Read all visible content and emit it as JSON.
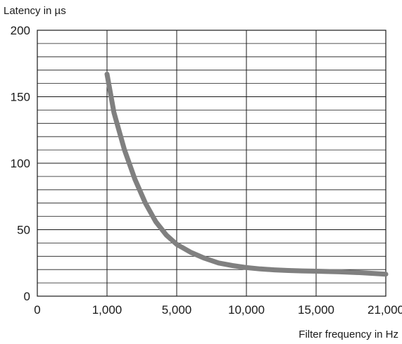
{
  "chart_data": {
    "type": "line",
    "ylabel": "Latency in µs",
    "xlabel": "Filter frequency in Hz",
    "x_categories": [
      "0",
      "1,000",
      "5,000",
      "10,000",
      "15,000",
      "21,000"
    ],
    "y_ticks": [
      0,
      50,
      100,
      150,
      200
    ],
    "ylim": [
      0,
      200
    ],
    "grid": true,
    "series": [
      {
        "color": "#808080",
        "points": [
          {
            "x": 1000,
            "y": 167
          },
          {
            "x": 1400,
            "y": 138
          },
          {
            "x": 2000,
            "y": 110
          },
          {
            "x": 2600,
            "y": 88
          },
          {
            "x": 3200,
            "y": 70
          },
          {
            "x": 3800,
            "y": 56
          },
          {
            "x": 4400,
            "y": 46
          },
          {
            "x": 5000,
            "y": 39
          },
          {
            "x": 6000,
            "y": 33
          },
          {
            "x": 7000,
            "y": 28.5
          },
          {
            "x": 8000,
            "y": 25
          },
          {
            "x": 9000,
            "y": 23
          },
          {
            "x": 10000,
            "y": 21.5
          },
          {
            "x": 11000,
            "y": 20.5
          },
          {
            "x": 12000,
            "y": 19.8
          },
          {
            "x": 13000,
            "y": 19.3
          },
          {
            "x": 14000,
            "y": 19
          },
          {
            "x": 15000,
            "y": 18.8
          },
          {
            "x": 17000,
            "y": 18.3
          },
          {
            "x": 19000,
            "y": 17.6
          },
          {
            "x": 21000,
            "y": 16.5
          }
        ]
      }
    ]
  }
}
